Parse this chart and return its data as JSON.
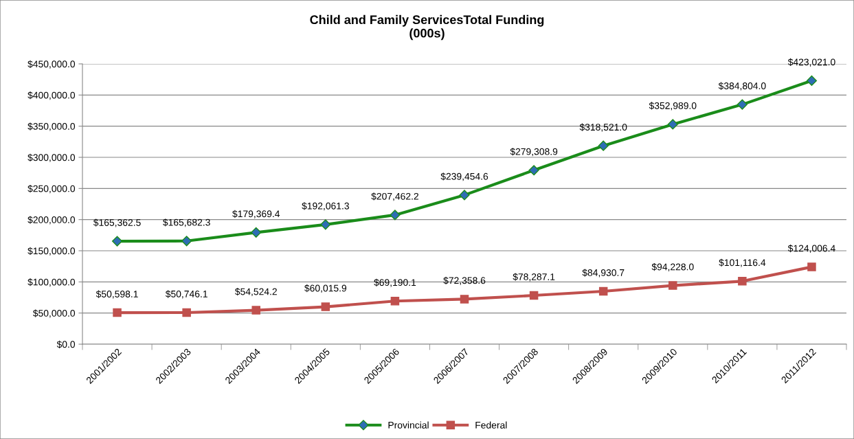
{
  "chart_data": {
    "type": "line",
    "title": "Child and Family ServicesTotal Funding\n(000s)",
    "categories": [
      "2001/2002",
      "2002/2003",
      "2003/2004",
      "2004/2005",
      "2005/2006",
      "2006/2007",
      "2007/2008",
      "2008/2009",
      "2009/2010",
      "2010/2011",
      "2011/2012"
    ],
    "series": [
      {
        "name": "Provincial",
        "color": "#1a8c1a",
        "marker": "diamond",
        "values": [
          165362.5,
          165682.3,
          179369.4,
          192061.3,
          207462.2,
          239454.6,
          279308.9,
          318521.0,
          352989.0,
          384804.0,
          423021.0
        ],
        "value_labels": [
          "$165,362.5",
          "$165,682.3",
          "$179,369.4",
          "$192,061.3",
          "$207,462.2",
          "$239,454.6",
          "$279,308.9",
          "$318,521.0",
          "$352,989.0",
          "$384,804.0",
          "$423,021.0"
        ]
      },
      {
        "name": "Federal",
        "color": "#c0504d",
        "marker": "square",
        "values": [
          50598.1,
          50746.1,
          54524.2,
          60015.9,
          69190.1,
          72358.6,
          78287.1,
          84930.7,
          94228.0,
          101116.4,
          124006.4
        ],
        "value_labels": [
          "$50,598.1",
          "$50,746.1",
          "$54,524.2",
          "$60,015.9",
          "$69,190.1",
          "$72,358.6",
          "$78,287.1",
          "$84,930.7",
          "$94,228.0",
          "$101,116.4",
          "$124,006.4"
        ]
      }
    ],
    "ylim": [
      0,
      450000
    ],
    "yticks": [
      {
        "value": 0,
        "label": "$0.0"
      },
      {
        "value": 50000,
        "label": "$50,000.0"
      },
      {
        "value": 100000,
        "label": "$100,000.0"
      },
      {
        "value": 150000,
        "label": "$150,000.0"
      },
      {
        "value": 200000,
        "label": "$200,000.0"
      },
      {
        "value": 250000,
        "label": "$250,000.0"
      },
      {
        "value": 300000,
        "label": "$300,000.0"
      },
      {
        "value": 350000,
        "label": "$350,000.0"
      },
      {
        "value": 400000,
        "label": "$400,000.0"
      },
      {
        "value": 450000,
        "label": "$450,000.0"
      }
    ],
    "grid": "y",
    "legend": "bottom",
    "line_style": "solid"
  }
}
